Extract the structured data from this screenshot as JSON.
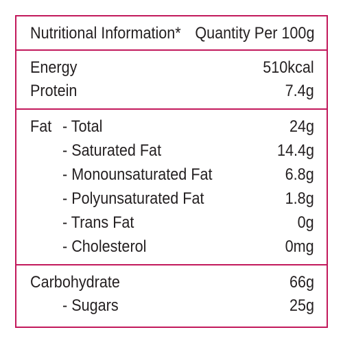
{
  "header": {
    "title": "Nutritional Information*",
    "quantity": "Quantity Per 100g"
  },
  "energy_section": {
    "energy": {
      "label": "Energy",
      "value": "510kcal"
    },
    "protein": {
      "label": "Protein",
      "value": "7.4g"
    }
  },
  "fat_section": {
    "prefix": "Fat",
    "total": {
      "label": "- Total",
      "value": "24g"
    },
    "saturated": {
      "label": "- Saturated Fat",
      "value": "14.4g"
    },
    "monounsaturated": {
      "label": "- Monounsaturated Fat",
      "value": "6.8g"
    },
    "polyunsaturated": {
      "label": "- Polyunsaturated Fat",
      "value": "1.8g"
    },
    "trans": {
      "label": "- Trans Fat",
      "value": "0g"
    },
    "cholesterol": {
      "label": "- Cholesterol",
      "value": "0mg"
    }
  },
  "carb_section": {
    "carbohydrate": {
      "label": "Carbohydrate",
      "value": "66g"
    },
    "sugars": {
      "label": "- Sugars",
      "value": "25g"
    }
  },
  "colors": {
    "border": "#c2185b",
    "text": "#231f20",
    "background": "#ffffff"
  }
}
